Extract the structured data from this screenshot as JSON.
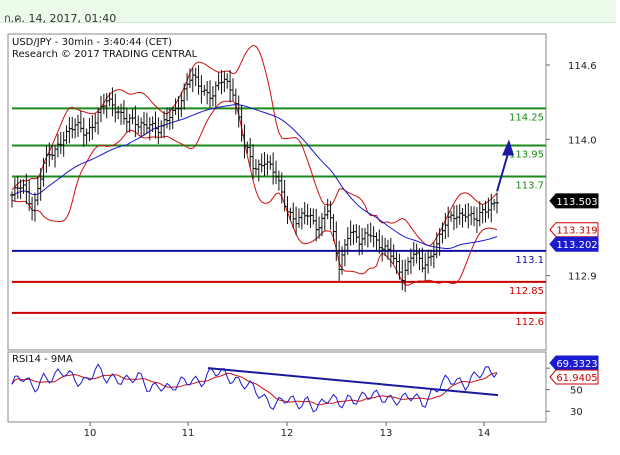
{
  "header": {
    "timestamp": "ก.ค. 14, 2017, 01:40"
  },
  "chart_data": [
    {
      "type": "candlestick",
      "title": "USD/JPY - 30min - 3:40:44 (CET)",
      "subtitle": "Research © 2017 TRADING CENTRAL",
      "x_ticks": [
        "10",
        "11",
        "12",
        "13",
        "14"
      ],
      "y_ticks": [
        "114.6",
        "114.0",
        "112.9"
      ],
      "ylim": [
        112.3,
        114.85
      ],
      "levels": [
        {
          "label": "114.25",
          "value": 114.25,
          "color": "#1a8a1a"
        },
        {
          "label": "113.95",
          "value": 113.95,
          "color": "#1a8a1a"
        },
        {
          "label": "113.7",
          "value": 113.7,
          "color": "#1a8a1a"
        },
        {
          "label": "113.1",
          "value": 113.1,
          "color": "#1010a0"
        },
        {
          "label": "112.85",
          "value": 112.85,
          "color": "#cc0000"
        },
        {
          "label": "112.6",
          "value": 112.6,
          "color": "#cc0000"
        }
      ],
      "price_tags": [
        {
          "label": "113.503",
          "value": 113.503,
          "bg": "#000000",
          "fg": "#ffffff"
        },
        {
          "label": "113.319",
          "value": 113.319,
          "bg": "#ffffff",
          "fg": "#cc0000"
        },
        {
          "label": "113.202",
          "value": 113.202,
          "bg": "#1a1ad0",
          "fg": "#ffffff"
        }
      ],
      "forecast_arrow": {
        "from": 113.58,
        "to": 113.95
      },
      "price_path": [
        113.55,
        113.62,
        113.45,
        113.8,
        113.9,
        114.05,
        114.1,
        114.05,
        114.18,
        114.3,
        114.25,
        114.15,
        114.1,
        114.15,
        114.05,
        114.2,
        114.32,
        114.5,
        114.42,
        114.35,
        114.48,
        114.4,
        113.95,
        113.75,
        113.85,
        113.7,
        113.45,
        113.35,
        113.38,
        113.3,
        113.45,
        112.95,
        113.3,
        113.15,
        113.25,
        113.15,
        113.05,
        112.9,
        113.1,
        112.95,
        113.12,
        113.3,
        113.38,
        113.42,
        113.33,
        113.45,
        113.52
      ]
    },
    {
      "type": "line",
      "title": "RSI14 - 9MA",
      "y_ticks": [
        "70",
        "50",
        "30"
      ],
      "ylim": [
        20,
        85
      ],
      "value_tags": [
        {
          "label": "69.3323",
          "value": 69.3323,
          "bg": "#1a1ad0",
          "fg": "#ffffff"
        },
        {
          "label": "61.9405",
          "value": 61.9405,
          "bg": "#ffffff",
          "fg": "#cc0000"
        }
      ],
      "trendline": {
        "from": 70,
        "to": 45
      },
      "rsi_path": [
        55,
        60,
        52,
        63,
        60,
        65,
        62,
        58,
        67,
        60,
        63,
        58,
        60,
        52,
        57,
        48,
        55,
        62,
        58,
        64,
        66,
        62,
        55,
        48,
        42,
        38,
        40,
        35,
        42,
        33,
        40,
        38,
        44,
        40,
        43,
        46,
        42,
        38,
        44,
        40,
        48,
        55,
        60,
        57,
        62,
        65,
        69
      ]
    }
  ]
}
